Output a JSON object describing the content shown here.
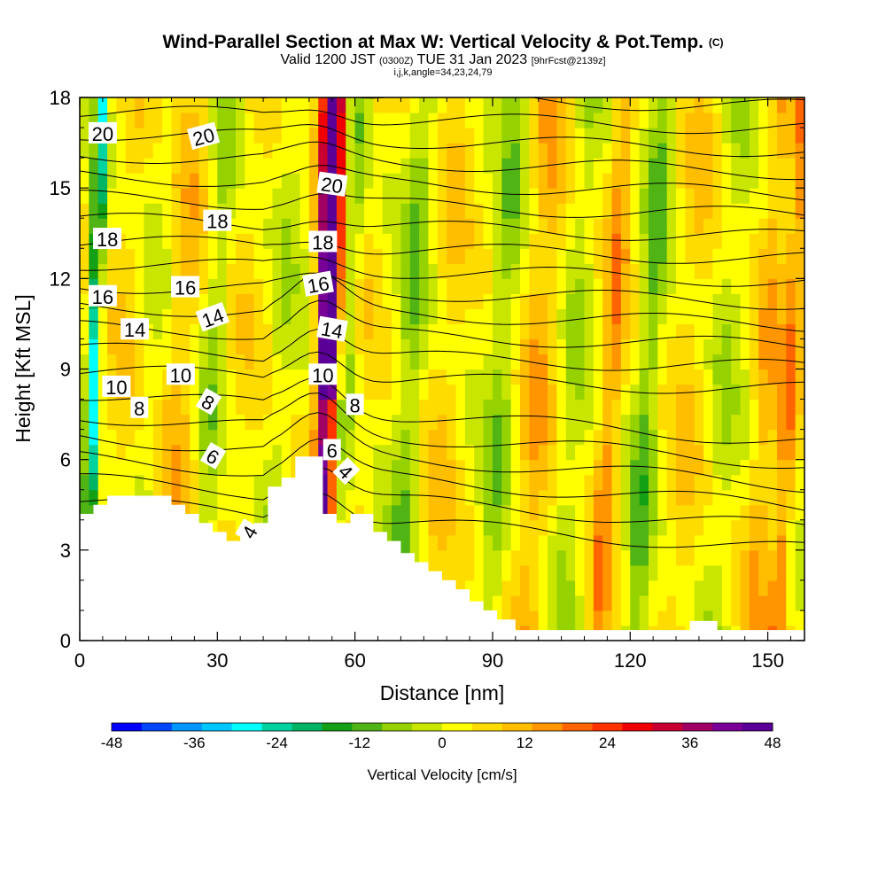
{
  "title": {
    "main": "Wind-Parallel Section at Max W: Vertical Velocity & Pot.Temp.",
    "copyright": "(C)",
    "valid_prefix": "Valid 1200 JST",
    "valid_utc": "(0300Z)",
    "valid_suffix": "TUE 31 Jan 2023",
    "forecast": "[9hrFcst@2139z]",
    "indices": "i,j,k,angle=34,23,24,79"
  },
  "chart_data": {
    "type": "heatmap",
    "xlabel": "Distance [nm]",
    "ylabel": "Height [Kft MSL]",
    "xlim": [
      0,
      158
    ],
    "ylim": [
      0,
      18
    ],
    "x_ticks": [
      0,
      30,
      60,
      90,
      120,
      150
    ],
    "y_ticks": [
      0,
      3,
      6,
      9,
      12,
      15,
      18
    ],
    "colorbar": {
      "title": "Vertical Velocity [cm/s]",
      "range": [
        -48,
        48
      ],
      "step": 6,
      "tick_labels": [
        "-48",
        "-36",
        "-24",
        "-12",
        "0",
        "12",
        "24",
        "36",
        "48"
      ],
      "colors": [
        "#0000ff",
        "#0046ff",
        "#0096ff",
        "#00c8ff",
        "#00ffff",
        "#00d2a0",
        "#00b464",
        "#14a014",
        "#50b414",
        "#96d200",
        "#c8e600",
        "#ffff00",
        "#ffdc00",
        "#ffbe00",
        "#ff9600",
        "#ff6400",
        "#ff3200",
        "#f00000",
        "#c80032",
        "#a00064",
        "#780096",
        "#5a0096"
      ]
    },
    "terrain": [
      [
        0,
        4.2
      ],
      [
        3,
        4.2
      ],
      [
        3,
        4.5
      ],
      [
        6,
        4.5
      ],
      [
        6,
        4.8
      ],
      [
        20,
        4.8
      ],
      [
        20,
        4.5
      ],
      [
        23,
        4.5
      ],
      [
        23,
        4.2
      ],
      [
        26,
        4.2
      ],
      [
        26,
        3.9
      ],
      [
        29,
        3.9
      ],
      [
        29,
        3.6
      ],
      [
        32,
        3.6
      ],
      [
        32,
        3.3
      ],
      [
        35,
        3.3
      ],
      [
        35,
        3.6
      ],
      [
        38,
        3.6
      ],
      [
        38,
        3.9
      ],
      [
        41,
        3.9
      ],
      [
        41,
        5.1
      ],
      [
        44,
        5.1
      ],
      [
        44,
        5.4
      ],
      [
        47,
        5.4
      ],
      [
        47,
        6.1
      ],
      [
        53,
        6.1
      ],
      [
        53,
        4.2
      ],
      [
        56,
        4.2
      ],
      [
        56,
        3.9
      ],
      [
        59,
        3.9
      ],
      [
        59,
        4.2
      ],
      [
        64,
        4.2
      ],
      [
        64,
        3.6
      ],
      [
        67,
        3.6
      ],
      [
        67,
        3.3
      ],
      [
        70,
        3.3
      ],
      [
        70,
        2.9
      ],
      [
        73,
        2.9
      ],
      [
        73,
        2.6
      ],
      [
        76,
        2.6
      ],
      [
        76,
        2.3
      ],
      [
        79,
        2.3
      ],
      [
        79,
        2.0
      ],
      [
        82,
        2.0
      ],
      [
        82,
        1.7
      ],
      [
        85,
        1.7
      ],
      [
        85,
        1.3
      ],
      [
        88,
        1.3
      ],
      [
        88,
        1.0
      ],
      [
        91,
        1.0
      ],
      [
        91,
        0.7
      ],
      [
        95,
        0.7
      ],
      [
        95,
        0.35
      ],
      [
        133,
        0.35
      ],
      [
        133,
        0.65
      ],
      [
        139,
        0.65
      ],
      [
        139,
        0.35
      ],
      [
        158,
        0.35
      ]
    ],
    "theta_contour_labels": [
      {
        "x": 5,
        "y": 16.8,
        "text": "20",
        "angle": 0
      },
      {
        "x": 27,
        "y": 16.7,
        "text": "20",
        "angle": -15
      },
      {
        "x": 55,
        "y": 15.1,
        "text": "20",
        "angle": 8
      },
      {
        "x": 6,
        "y": 13.3,
        "text": "18",
        "angle": 0
      },
      {
        "x": 30,
        "y": 13.9,
        "text": "18",
        "angle": 0
      },
      {
        "x": 53,
        "y": 13.2,
        "text": "18",
        "angle": 0
      },
      {
        "x": 5,
        "y": 11.4,
        "text": "16",
        "angle": 0
      },
      {
        "x": 23,
        "y": 11.7,
        "text": "16",
        "angle": 0
      },
      {
        "x": 52,
        "y": 11.8,
        "text": "16",
        "angle": -10
      },
      {
        "x": 12,
        "y": 10.3,
        "text": "14",
        "angle": 0
      },
      {
        "x": 29,
        "y": 10.7,
        "text": "14",
        "angle": -20
      },
      {
        "x": 55,
        "y": 10.3,
        "text": "14",
        "angle": 10
      },
      {
        "x": 8,
        "y": 8.4,
        "text": "10",
        "angle": 0
      },
      {
        "x": 22,
        "y": 8.8,
        "text": "10",
        "angle": 0
      },
      {
        "x": 53,
        "y": 8.8,
        "text": "10",
        "angle": 0
      },
      {
        "x": 13,
        "y": 7.7,
        "text": "8",
        "angle": 0
      },
      {
        "x": 28,
        "y": 7.9,
        "text": "8",
        "angle": 30
      },
      {
        "x": 60,
        "y": 7.8,
        "text": "8",
        "angle": 0
      },
      {
        "x": 29,
        "y": 6.1,
        "text": "6",
        "angle": 30
      },
      {
        "x": 55,
        "y": 6.3,
        "text": "6",
        "angle": 0
      },
      {
        "x": 37,
        "y": 3.6,
        "text": "4",
        "angle": -60
      },
      {
        "x": 58,
        "y": 5.6,
        "text": "4",
        "angle": 45
      }
    ]
  }
}
